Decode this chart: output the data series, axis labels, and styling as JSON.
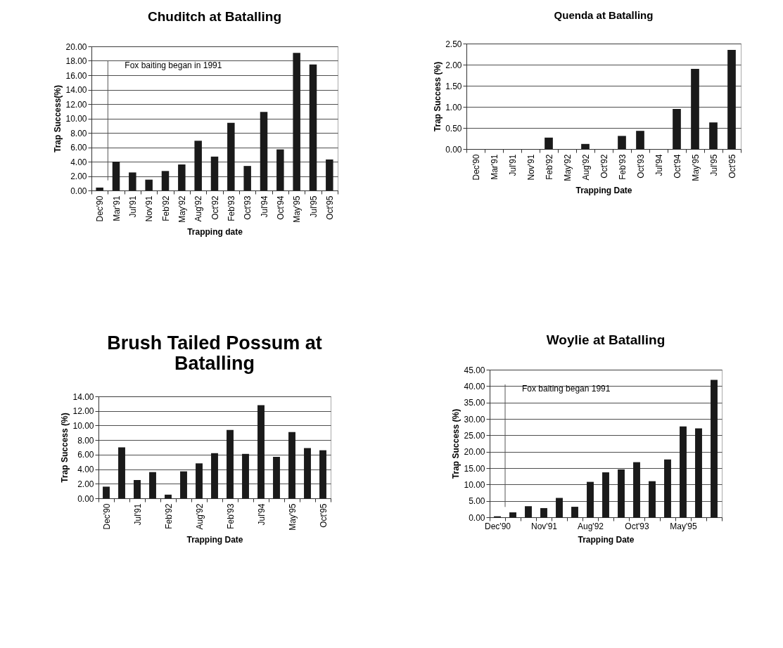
{
  "chart_data": [
    {
      "type": "bar",
      "title": "Chuditch at Batalling",
      "xlabel": "Trapping date",
      "ylabel": "Trap Success(%)",
      "categories": [
        "Dec'90",
        "Mar'91",
        "Jul'91",
        "Nov'91",
        "Feb'92",
        "May'92",
        "Aug'92",
        "Oct'92",
        "Feb'93",
        "Oct'93",
        "Jul'94",
        "Oct'94",
        "May'95",
        "Jul'95",
        "Oct'95"
      ],
      "values": [
        0.4,
        4.0,
        2.5,
        1.5,
        2.7,
        3.6,
        6.9,
        4.7,
        9.4,
        3.4,
        10.9,
        5.7,
        19.1,
        17.5,
        4.3
      ],
      "color": "#1a1a1a",
      "ylim": [
        0,
        20
      ],
      "yticks": [
        {
          "value": 0,
          "label": "0.00"
        },
        {
          "value": 2,
          "label": "2.00"
        },
        {
          "value": 4,
          "label": "4.00"
        },
        {
          "value": 6,
          "label": "6.00"
        },
        {
          "value": 8,
          "label": "8.00"
        },
        {
          "value": 10,
          "label": "10.00"
        },
        {
          "value": 12,
          "label": "12.00"
        },
        {
          "value": 14,
          "label": "14.00"
        },
        {
          "value": 16,
          "label": "16.00"
        },
        {
          "value": 18,
          "label": "18.00"
        },
        {
          "value": 20,
          "label": "20.00"
        }
      ],
      "grid": "y",
      "ref_lines": [
        {
          "axis": "x",
          "value": "Dec'90",
          "label": "Fox baiting began in 1991"
        }
      ]
    },
    {
      "type": "bar",
      "title": "Quenda at Batalling",
      "xlabel": "Trapping Date",
      "ylabel": "Trap Success (%)",
      "categories": [
        "Dec'90",
        "Mar'91",
        "Jul'91",
        "Nov'91",
        "Feb'92",
        "May'92",
        "Aug'92",
        "Oct'92",
        "Feb'93",
        "Oct'93",
        "Jul'94",
        "Oct'94",
        "May'95",
        "Jul'95",
        "Oct'95"
      ],
      "values": [
        0,
        0,
        0,
        0,
        0.27,
        0,
        0.12,
        0,
        0.31,
        0.43,
        0,
        0.95,
        1.9,
        0.63,
        2.35
      ],
      "color": "#1a1a1a",
      "ylim": [
        0,
        2.5
      ],
      "yticks": [
        {
          "value": 0,
          "label": "0.00"
        },
        {
          "value": 0.5,
          "label": "0.50"
        },
        {
          "value": 1,
          "label": "1.00"
        },
        {
          "value": 1.5,
          "label": "1.50"
        },
        {
          "value": 2,
          "label": "2.00"
        },
        {
          "value": 2.5,
          "label": "2.50"
        }
      ],
      "grid": "y"
    },
    {
      "type": "bar",
      "title": "Brush Tailed Possum at Batalling",
      "xlabel": "Trapping Date",
      "ylabel": "Trap Success (%)",
      "categories": [
        "Dec'90",
        null,
        "Jul'91",
        null,
        "Feb'92",
        null,
        "Aug'92",
        null,
        "Feb'93",
        null,
        "Jul'94",
        null,
        "May'95",
        null,
        "Oct'95"
      ],
      "values": [
        1.6,
        7.0,
        2.5,
        3.6,
        0.5,
        3.7,
        4.8,
        6.2,
        9.4,
        6.1,
        12.8,
        5.7,
        9.1,
        6.9,
        6.6
      ],
      "color": "#1a1a1a",
      "ylim": [
        0,
        14
      ],
      "yticks": [
        {
          "value": 0,
          "label": "0.00"
        },
        {
          "value": 2,
          "label": "2.00"
        },
        {
          "value": 4,
          "label": "4.00"
        },
        {
          "value": 6,
          "label": "6.00"
        },
        {
          "value": 8,
          "label": "8.00"
        },
        {
          "value": 10,
          "label": "10.00"
        },
        {
          "value": 12,
          "label": "12.00"
        },
        {
          "value": 14,
          "label": "14.00"
        }
      ],
      "grid": "y"
    },
    {
      "type": "bar",
      "title": "Woylie at Batalling",
      "xlabel": "Trapping Date",
      "ylabel": "Trap Success (%)",
      "categories": [
        "Dec'90",
        null,
        null,
        "Nov'91",
        null,
        null,
        "Aug'92",
        null,
        null,
        "Oct'93",
        null,
        null,
        "May'95",
        null,
        null
      ],
      "values": [
        0.3,
        1.5,
        3.4,
        2.8,
        5.9,
        3.2,
        10.8,
        13.7,
        14.6,
        16.8,
        11.0,
        17.6,
        27.7,
        27.1,
        41.9
      ],
      "color": "#1a1a1a",
      "ylim": [
        0,
        45
      ],
      "yticks": [
        {
          "value": 0,
          "label": "0.00"
        },
        {
          "value": 5,
          "label": "5.00"
        },
        {
          "value": 10,
          "label": "10.00"
        },
        {
          "value": 15,
          "label": "15.00"
        },
        {
          "value": 20,
          "label": "20.00"
        },
        {
          "value": 25,
          "label": "25.00"
        },
        {
          "value": 30,
          "label": "30.00"
        },
        {
          "value": 35,
          "label": "35.00"
        },
        {
          "value": 40,
          "label": "40.00"
        },
        {
          "value": 45,
          "label": "45.00"
        }
      ],
      "grid": "y",
      "ref_lines": [
        {
          "axis": "x",
          "value": "Dec'90",
          "label": "Fox baiting began 1991"
        }
      ]
    }
  ]
}
